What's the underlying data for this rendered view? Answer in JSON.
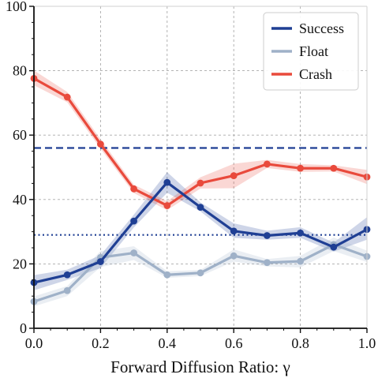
{
  "chart_data": {
    "type": "line",
    "xlabel": "Forward Diffusion Ratio: γ",
    "ylabel": "",
    "xlim": [
      0.0,
      1.0
    ],
    "ylim": [
      0,
      100
    ],
    "xticks": [
      0.0,
      0.2,
      0.4,
      0.6,
      0.8,
      1.0
    ],
    "xtick_labels": [
      "0.0",
      "0.2",
      "0.4",
      "0.6",
      "0.8",
      "1.0"
    ],
    "yticks": [
      0,
      20,
      40,
      60,
      80,
      100
    ],
    "ytick_labels": [
      "0",
      "20",
      "40",
      "60",
      "80",
      "100"
    ],
    "grid": true,
    "legend": {
      "location": "top-right",
      "entries": [
        "Success",
        "Float",
        "Crash"
      ]
    },
    "x": [
      0.0,
      0.1,
      0.2,
      0.3,
      0.4,
      0.5,
      0.6,
      0.7,
      0.8,
      0.9,
      1.0
    ],
    "series": [
      {
        "name": "Success",
        "color": "#1f3f94",
        "values": [
          14.2,
          16.6,
          20.7,
          33.3,
          45.3,
          37.6,
          30.2,
          28.8,
          29.6,
          25.2,
          30.7
        ],
        "lower": [
          11.8,
          15.0,
          18.7,
          31.3,
          42.1,
          36.3,
          28.1,
          27.5,
          28.1,
          23.8,
          27.5
        ],
        "upper": [
          16.5,
          18.2,
          22.7,
          35.3,
          48.5,
          39.1,
          32.6,
          30.3,
          31.4,
          26.6,
          34.5
        ]
      },
      {
        "name": "Float",
        "color": "#9fb1c8",
        "values": [
          8.3,
          11.7,
          22.0,
          23.4,
          16.6,
          17.2,
          22.5,
          20.4,
          20.8,
          26.0,
          22.3
        ],
        "lower": [
          6.8,
          10.0,
          19.0,
          21.2,
          15.7,
          16.2,
          20.7,
          19.2,
          18.9,
          24.0,
          20.6
        ],
        "upper": [
          9.9,
          13.1,
          24.0,
          25.5,
          17.7,
          18.1,
          24.5,
          21.5,
          22.5,
          28.2,
          24.1
        ]
      },
      {
        "name": "Crash",
        "color": "#e94a3c",
        "values": [
          77.6,
          71.8,
          57.2,
          43.3,
          38.1,
          45.1,
          47.4,
          51.0,
          49.7,
          49.7,
          47.0
        ],
        "lower": [
          75.5,
          70.2,
          55.8,
          42.0,
          36.7,
          43.4,
          43.5,
          49.8,
          48.6,
          48.7,
          44.8
        ],
        "upper": [
          80.1,
          73.4,
          58.7,
          44.6,
          39.5,
          46.9,
          51.1,
          52.3,
          51.0,
          50.6,
          49.2
        ]
      }
    ],
    "reference_lines": [
      {
        "style": "dashed",
        "color": "#1f3f94",
        "y": 56.0
      },
      {
        "style": "dotted",
        "color": "#1f3f94",
        "y": 29.0
      }
    ]
  }
}
